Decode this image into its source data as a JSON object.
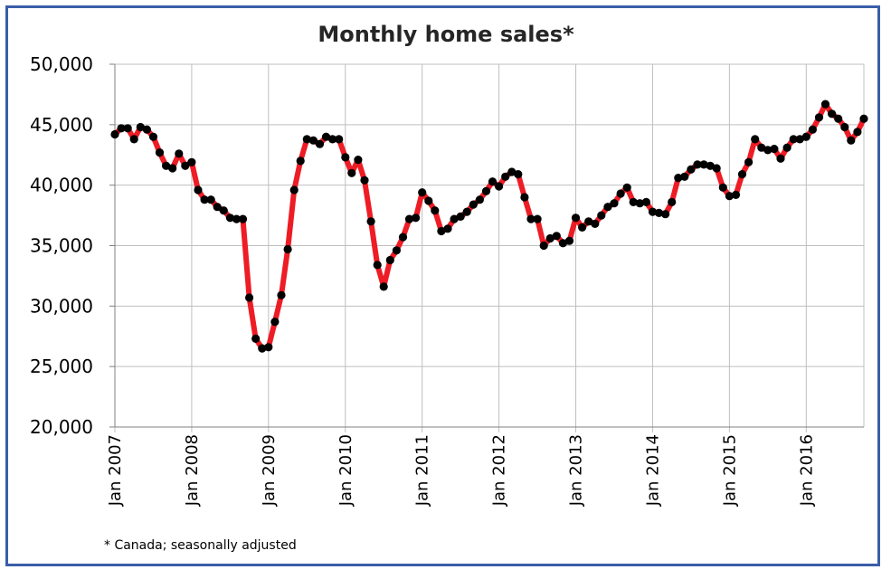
{
  "chart_data": {
    "type": "line",
    "title": "Monthly home sales*",
    "footnote": "* Canada; seasonally adjusted",
    "xlabel": "",
    "ylabel": "",
    "ylim": [
      20000,
      50000
    ],
    "yticks": [
      20000,
      25000,
      30000,
      35000,
      40000,
      45000,
      50000
    ],
    "ytick_labels": [
      "20,000",
      "25,000",
      "30,000",
      "35,000",
      "40,000",
      "45,000",
      "50,000"
    ],
    "xlim": [
      "2007-01",
      "2016-10"
    ],
    "x_tick_labels": [
      "Jan 2007",
      "Jan 2008",
      "Jan 2009",
      "Jan 2010",
      "Jan 2011",
      "Jan 2012",
      "Jan 2013",
      "Jan 2014",
      "Jan 2015",
      "Jan 2016"
    ],
    "grid": true,
    "legend": "none",
    "line_color": "#ee1c25",
    "marker_color": "#000000",
    "series": [
      {
        "x": [
          "2007-01",
          "2007-02",
          "2007-03",
          "2007-04",
          "2007-05",
          "2007-06",
          "2007-07",
          "2007-08",
          "2007-09",
          "2007-10",
          "2007-11",
          "2007-12",
          "2008-01",
          "2008-02",
          "2008-03",
          "2008-04",
          "2008-05",
          "2008-06",
          "2008-07",
          "2008-08",
          "2008-09",
          "2008-10",
          "2008-11",
          "2008-12",
          "2009-01",
          "2009-02",
          "2009-03",
          "2009-04",
          "2009-05",
          "2009-06",
          "2009-07",
          "2009-08",
          "2009-09",
          "2009-10",
          "2009-11",
          "2009-12",
          "2010-01",
          "2010-02",
          "2010-03",
          "2010-04",
          "2010-05",
          "2010-06",
          "2010-07",
          "2010-08",
          "2010-09",
          "2010-10",
          "2010-11",
          "2010-12",
          "2011-01",
          "2011-02",
          "2011-03",
          "2011-04",
          "2011-05",
          "2011-06",
          "2011-07",
          "2011-08",
          "2011-09",
          "2011-10",
          "2011-11",
          "2011-12",
          "2012-01",
          "2012-02",
          "2012-03",
          "2012-04",
          "2012-05",
          "2012-06",
          "2012-07",
          "2012-08",
          "2012-09",
          "2012-10",
          "2012-11",
          "2012-12",
          "2013-01",
          "2013-02",
          "2013-03",
          "2013-04",
          "2013-05",
          "2013-06",
          "2013-07",
          "2013-08",
          "2013-09",
          "2013-10",
          "2013-11",
          "2013-12",
          "2014-01",
          "2014-02",
          "2014-03",
          "2014-04",
          "2014-05",
          "2014-06",
          "2014-07",
          "2014-08",
          "2014-09",
          "2014-10",
          "2014-11",
          "2014-12",
          "2015-01",
          "2015-02",
          "2015-03",
          "2015-04",
          "2015-05",
          "2015-06",
          "2015-07",
          "2015-08",
          "2015-09",
          "2015-10",
          "2015-11",
          "2015-12",
          "2016-01",
          "2016-02",
          "2016-03",
          "2016-04",
          "2016-05",
          "2016-06",
          "2016-07",
          "2016-08",
          "2016-09",
          "2016-10"
        ],
        "values": [
          44200,
          44700,
          44700,
          43800,
          44800,
          44600,
          44000,
          42700,
          41600,
          41400,
          42600,
          41600,
          41900,
          39600,
          38800,
          38800,
          38200,
          37900,
          37300,
          37200,
          37200,
          30700,
          27300,
          26500,
          26600,
          28700,
          30900,
          34700,
          39600,
          42000,
          43800,
          43700,
          43400,
          44000,
          43800,
          43800,
          42300,
          41000,
          42100,
          40400,
          37000,
          33400,
          31600,
          33800,
          34600,
          35700,
          37200,
          37300,
          39400,
          38700,
          37900,
          36200,
          36400,
          37200,
          37400,
          37800,
          38400,
          38800,
          39500,
          40300,
          39900,
          40700,
          41100,
          40900,
          39000,
          37200,
          37200,
          35000,
          35600,
          35800,
          35200,
          35400,
          37300,
          36500,
          37000,
          36800,
          37500,
          38200,
          38500,
          39300,
          39800,
          38600,
          38500,
          38600,
          37800,
          37700,
          37600,
          38600,
          40600,
          40700,
          41300,
          41700,
          41700,
          41600,
          41400,
          39800,
          39100,
          39200,
          40900,
          41900,
          43800,
          43100,
          42900,
          43000,
          42200,
          43100,
          43800,
          43800,
          44000,
          44600,
          45600,
          46700,
          45900,
          45500,
          44800,
          43700,
          44400,
          45500
        ]
      }
    ]
  }
}
